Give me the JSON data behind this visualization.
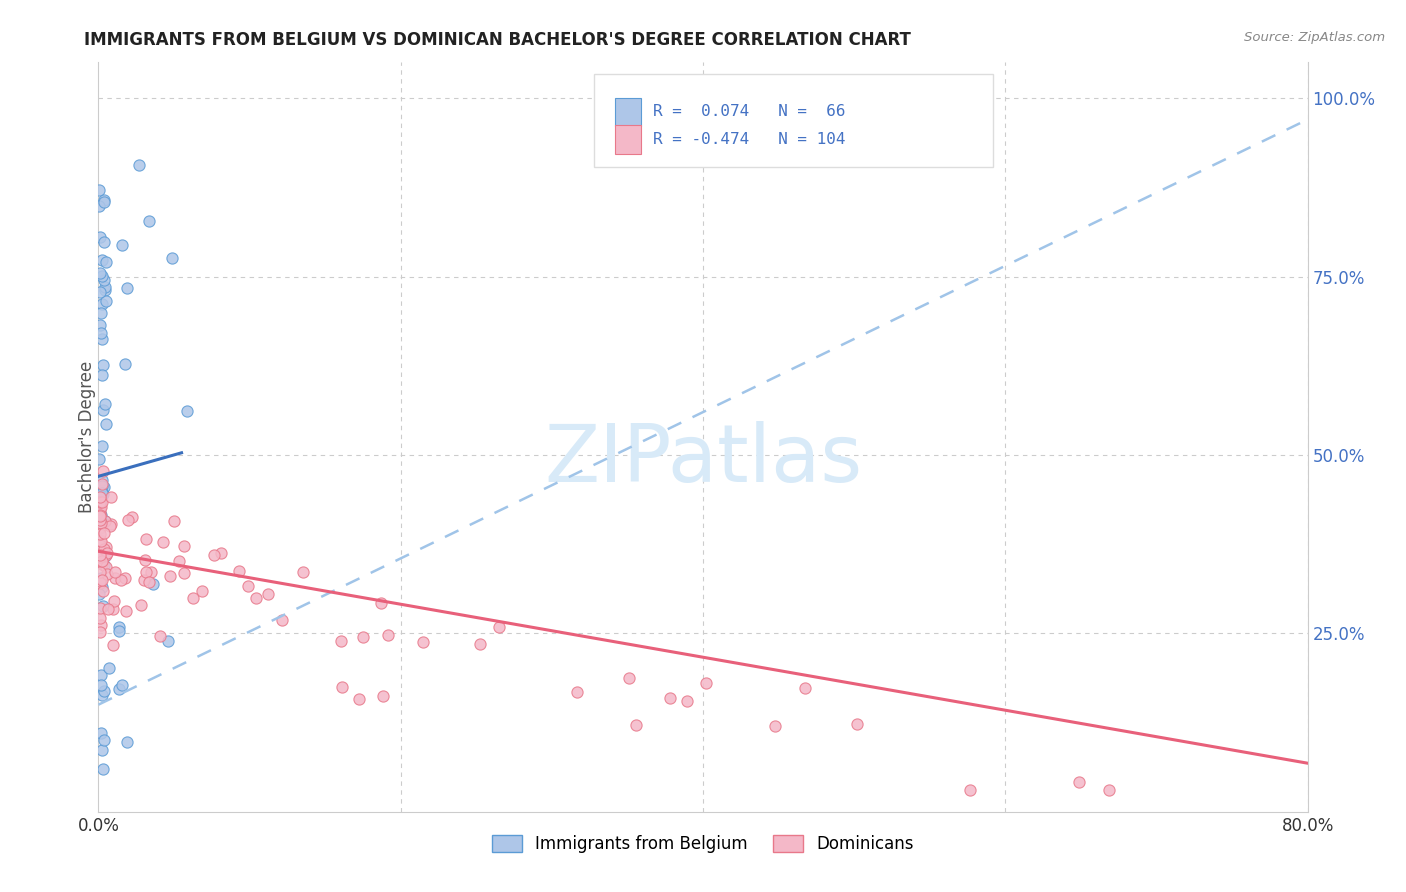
{
  "title": "IMMIGRANTS FROM BELGIUM VS DOMINICAN BACHELOR'S DEGREE CORRELATION CHART",
  "source": "Source: ZipAtlas.com",
  "ylabel": "Bachelor's Degree",
  "right_yticks": [
    "100.0%",
    "75.0%",
    "50.0%",
    "25.0%"
  ],
  "right_ytick_vals": [
    1.0,
    0.75,
    0.5,
    0.25
  ],
  "legend_label1": "Immigrants from Belgium",
  "legend_label2": "Dominicans",
  "r1": "0.074",
  "n1": "66",
  "r2": "-0.474",
  "n2": "104",
  "color_blue_fill": "#aec6e8",
  "color_blue_edge": "#5b9bd5",
  "color_pink_fill": "#f4b8c8",
  "color_pink_edge": "#e8788a",
  "color_blue_line": "#3a6fbd",
  "color_dashed_line": "#a0c4e8",
  "color_pink_line": "#e8607a",
  "background": "#ffffff",
  "grid_color": "#cccccc",
  "ytick_color": "#4472c4",
  "title_color": "#222222",
  "watermark_color": "#d8eaf8",
  "xlim": [
    0.0,
    0.8
  ],
  "ylim": [
    0.0,
    1.05
  ]
}
